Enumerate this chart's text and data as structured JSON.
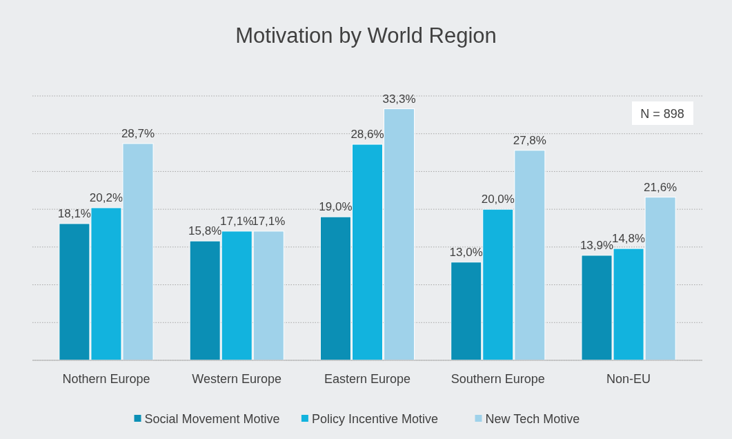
{
  "chart_data": {
    "type": "bar",
    "title": "Motivation by World Region",
    "categories": [
      "Nothern Europe",
      "Western Europe",
      "Eastern Europe",
      "Southern Europe",
      "Non-EU"
    ],
    "series": [
      {
        "name": "Social Movement Motive",
        "color": "#0b8fb5",
        "values": [
          18.1,
          15.8,
          19.0,
          13.0,
          13.9
        ],
        "value_labels": [
          "18,1%",
          "15,8%",
          "19,0%",
          "13,0%",
          "13,9%"
        ]
      },
      {
        "name": "Policy Incentive Motive",
        "color": "#12b3de",
        "values": [
          20.2,
          17.1,
          28.6,
          20.0,
          14.8
        ],
        "value_labels": [
          "20,2%",
          "17,1%",
          "28,6%",
          "20,0%",
          "14,8%"
        ]
      },
      {
        "name": "New Tech Motive",
        "color": "#9fd2ea",
        "values": [
          28.7,
          17.1,
          33.3,
          27.8,
          21.6
        ],
        "value_labels": [
          "28,7%",
          "17,1%",
          "33,3%",
          "27,8%",
          "21,6%"
        ]
      }
    ],
    "ylim": [
      0,
      35
    ],
    "yticks": [
      {
        "value": 0,
        "label": null
      },
      {
        "value": 5,
        "label": null
      },
      {
        "value": 10,
        "label": null
      },
      {
        "value": 15,
        "label": null
      },
      {
        "value": 20,
        "label": null
      },
      {
        "value": 25,
        "label": null
      },
      {
        "value": 30,
        "label": null
      },
      {
        "value": 35,
        "label": null
      }
    ],
    "tick_labels": "x",
    "grid": "y",
    "legend": "bottom",
    "annotations": [
      "N = 898"
    ]
  }
}
